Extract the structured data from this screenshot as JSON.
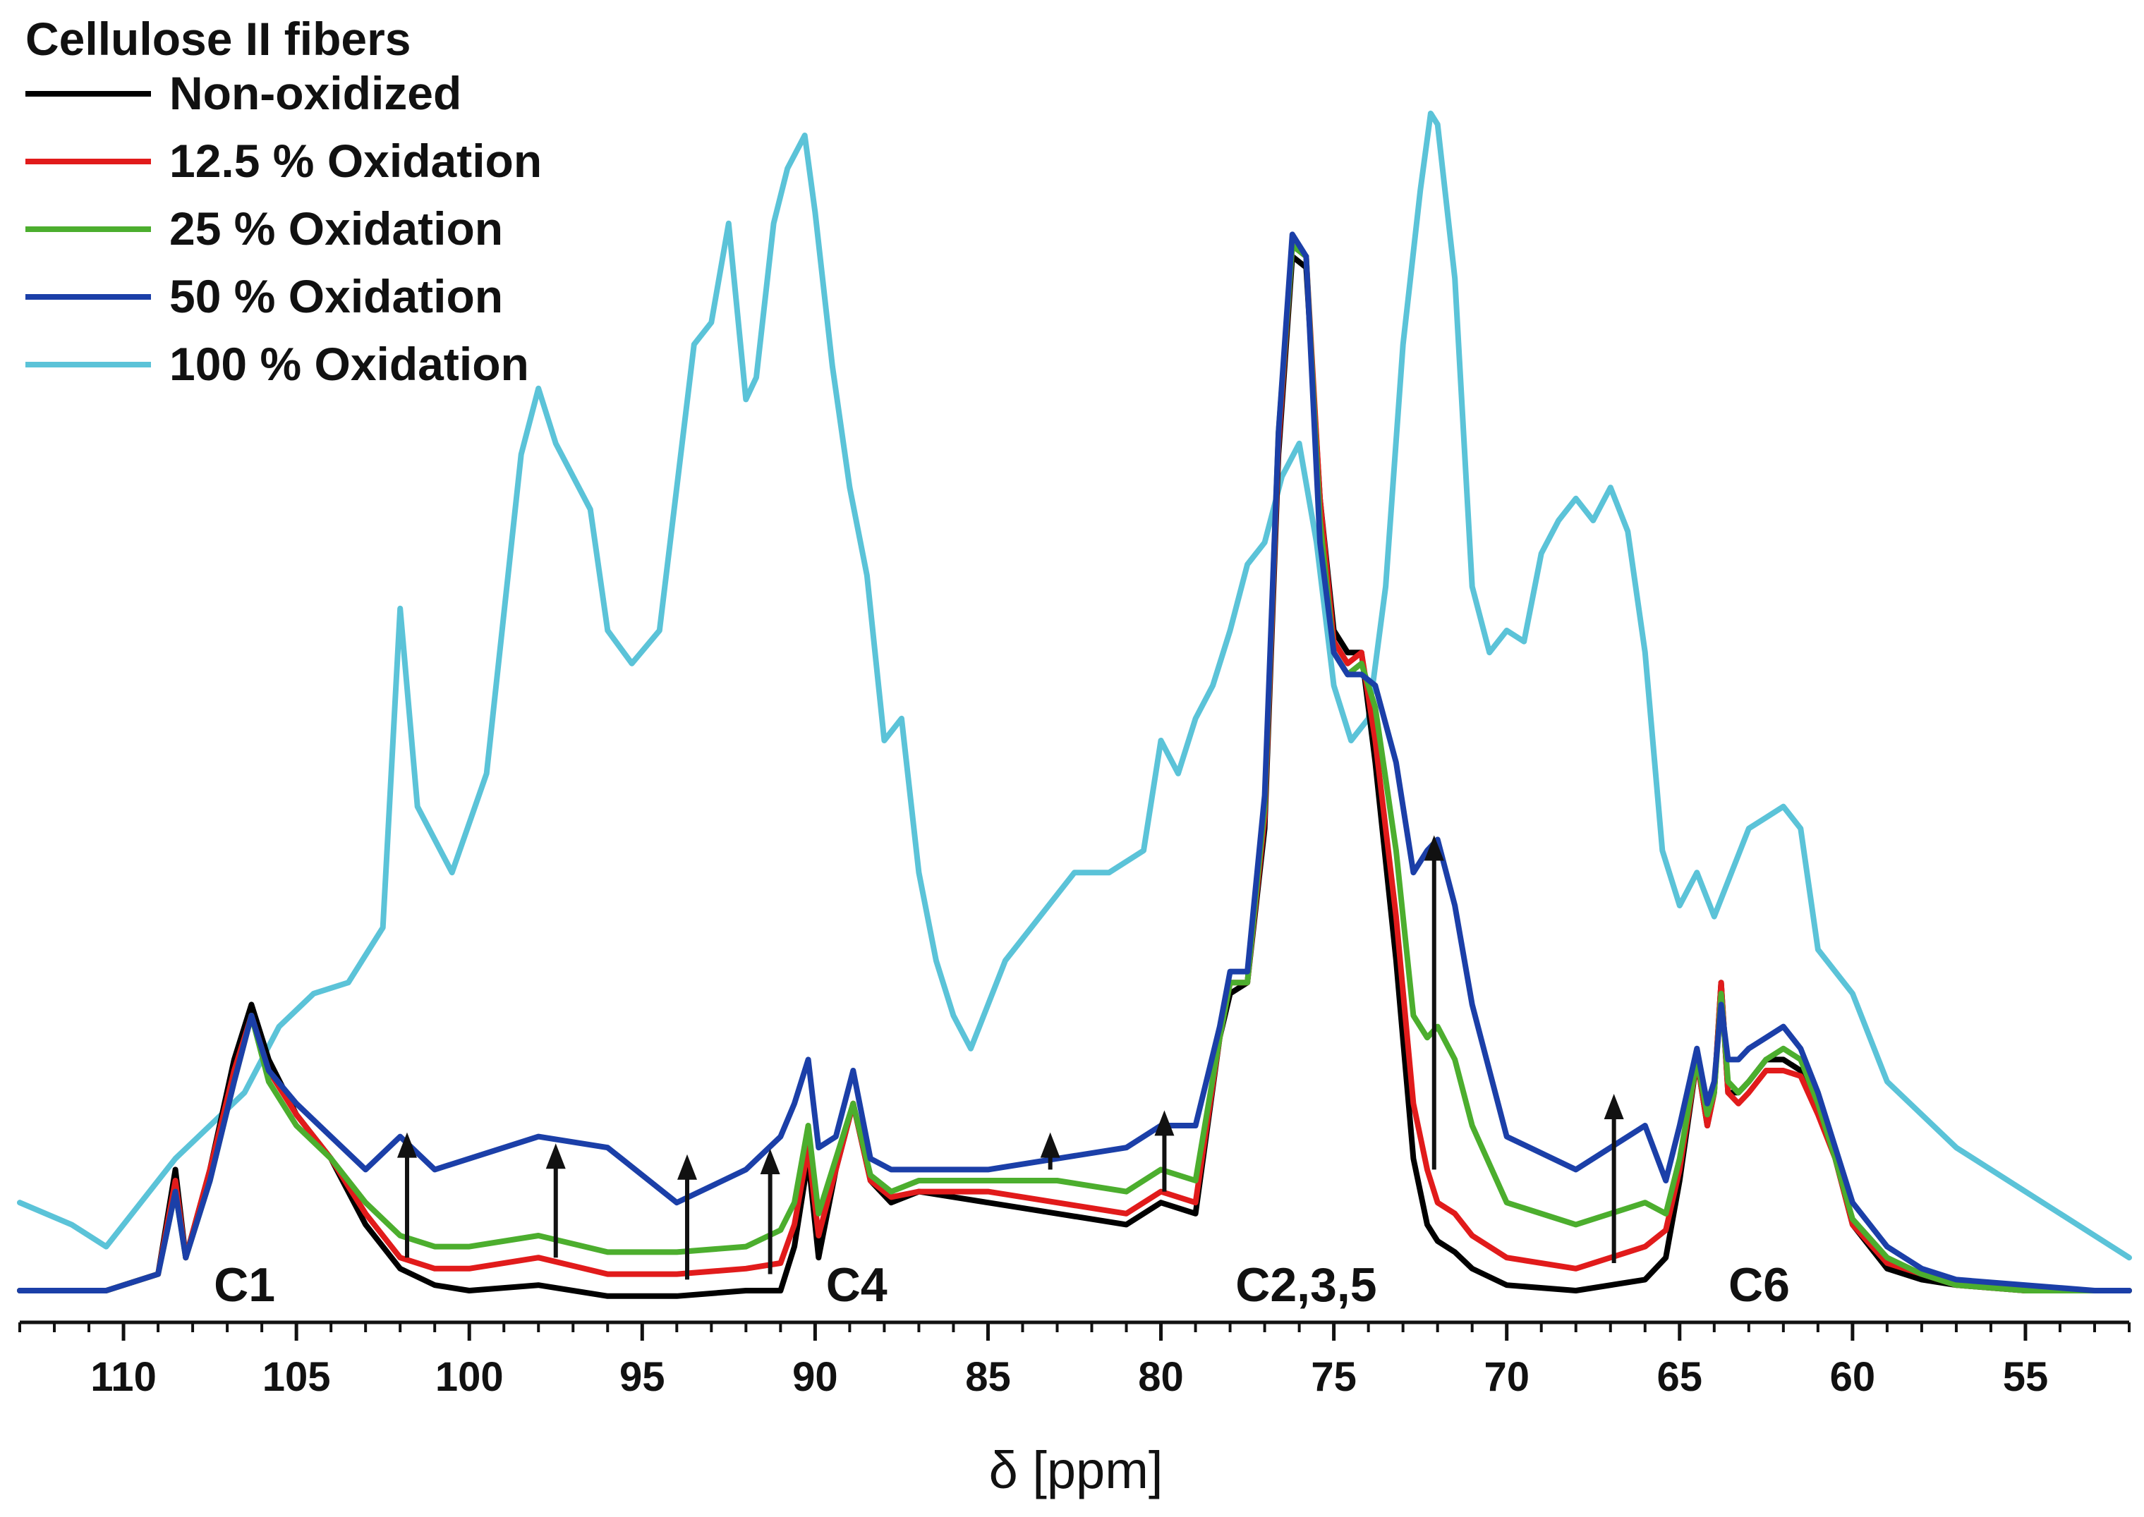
{
  "chart_data": {
    "type": "line",
    "title": "",
    "xlabel": "δ [ppm]",
    "ylabel": "",
    "xlim": [
      113,
      52
    ],
    "x_reversed": true,
    "ylim": [
      0,
      100
    ],
    "grid": false,
    "xticks": [
      110,
      105,
      100,
      95,
      90,
      85,
      80,
      75,
      70,
      65,
      60,
      55
    ],
    "legend": {
      "title": "Cellulose II fibers",
      "position": "top-left",
      "entries": [
        "Non-oxidized",
        "12.5 % Oxidation",
        "25 % Oxidation",
        "50 % Oxidation",
        "100 % Oxidation"
      ]
    },
    "peak_labels": [
      {
        "text": "C1",
        "ppm": 106.5
      },
      {
        "text": "C4",
        "ppm": 88.8
      },
      {
        "text": "C2,3,5",
        "ppm": 75.8
      },
      {
        "text": "C6",
        "ppm": 62.7
      }
    ],
    "arrows": [
      {
        "ppm": 101.8,
        "from": 3,
        "to": 14
      },
      {
        "ppm": 97.5,
        "from": 3,
        "to": 13
      },
      {
        "ppm": 93.7,
        "from": 1,
        "to": 12
      },
      {
        "ppm": 91.3,
        "from": 1.5,
        "to": 12.5
      },
      {
        "ppm": 83.2,
        "from": 11,
        "to": 14
      },
      {
        "ppm": 79.9,
        "from": 9,
        "to": 16
      },
      {
        "ppm": 72.1,
        "from": 11,
        "to": 41
      },
      {
        "ppm": 66.9,
        "from": 2.5,
        "to": 17.5
      }
    ],
    "series": [
      {
        "name": "Non-oxidized",
        "color": "#000000",
        "x": [
          113,
          110.5,
          109,
          108.5,
          108.2,
          107.5,
          106.8,
          106.3,
          105.8,
          105,
          104,
          103,
          102,
          101,
          100,
          98,
          96,
          94,
          92,
          91,
          90.6,
          90.2,
          89.9,
          89.4,
          88.9,
          88.4,
          87.8,
          87,
          85,
          83,
          81,
          80,
          79,
          78.3,
          78,
          77.5,
          77,
          76.6,
          76.2,
          75.8,
          75.4,
          75,
          74.6,
          74.2,
          73.8,
          73.2,
          72.7,
          72.3,
          72,
          71.5,
          71,
          70,
          68,
          66,
          65.4,
          65,
          64.5,
          64.2,
          64,
          63.8,
          63.6,
          63.3,
          63,
          62.5,
          62,
          61.5,
          61,
          60.5,
          60,
          59,
          58,
          57,
          55,
          53,
          52
        ],
        "y": [
          0,
          0,
          1.5,
          11,
          3,
          11,
          21,
          26,
          21,
          16,
          12,
          6,
          2,
          0.5,
          0,
          0.5,
          -0.5,
          -0.5,
          0,
          0,
          4,
          12,
          3,
          11,
          17,
          10,
          8,
          9,
          8,
          7,
          6,
          8,
          7,
          23,
          27,
          28,
          42,
          76,
          94,
          93,
          72,
          60,
          58,
          58,
          48,
          30,
          12,
          6,
          4.5,
          3.5,
          2,
          0.5,
          0,
          1,
          3,
          10,
          21,
          15,
          18,
          28,
          18,
          18,
          19,
          21,
          21,
          20,
          17,
          12,
          6,
          2,
          1,
          0.5,
          0,
          0,
          0
        ]
      },
      {
        "name": "12.5 % Oxidation",
        "color": "#e11b1b",
        "x": [
          113,
          110.5,
          109,
          108.5,
          108.2,
          107.5,
          106.8,
          106.3,
          105.8,
          105,
          104,
          103,
          102,
          101,
          100,
          98,
          96,
          94,
          92,
          91,
          90.6,
          90.2,
          89.9,
          89.4,
          88.9,
          88.4,
          87.8,
          87,
          85,
          83,
          81,
          80,
          79,
          78.3,
          78,
          77.5,
          77,
          76.6,
          76.2,
          75.8,
          75.4,
          75,
          74.6,
          74.2,
          73.8,
          73.2,
          72.7,
          72.3,
          72,
          71.5,
          71,
          70,
          68,
          66,
          65.4,
          65,
          64.5,
          64.2,
          64,
          63.8,
          63.6,
          63.3,
          63,
          62.5,
          62,
          61.5,
          61,
          60.5,
          60,
          59,
          58,
          57,
          55,
          53,
          52
        ],
        "y": [
          0,
          0,
          1.5,
          10,
          3,
          11,
          20,
          25,
          20,
          16,
          12,
          7,
          3,
          2,
          2,
          3,
          1.5,
          1.5,
          2,
          2.5,
          6,
          13,
          5,
          11,
          17,
          10,
          8.5,
          9,
          9,
          8,
          7,
          9,
          8,
          23,
          28,
          28,
          43,
          77,
          95,
          94,
          72,
          59,
          57,
          58,
          50,
          34,
          17,
          11,
          8,
          7,
          5,
          3,
          2,
          4,
          5.5,
          11,
          21,
          15,
          18,
          28,
          18,
          17,
          18,
          20,
          20,
          19.5,
          16,
          12,
          6,
          2.5,
          1.5,
          0.5,
          0,
          0,
          0
        ]
      },
      {
        "name": "25 % Oxidation",
        "color": "#4cae2e",
        "x": [
          113,
          110.5,
          109,
          108.5,
          108.2,
          107.5,
          106.8,
          106.3,
          105.8,
          105,
          104,
          103,
          102,
          101,
          100,
          98,
          96,
          94,
          92,
          91,
          90.6,
          90.2,
          89.9,
          89.4,
          88.9,
          88.4,
          87.8,
          87,
          85,
          83,
          81,
          80,
          79,
          78.3,
          78,
          77.5,
          77,
          76.6,
          76.2,
          75.8,
          75.4,
          75,
          74.6,
          74.2,
          73.8,
          73.2,
          72.7,
          72.3,
          72,
          71.5,
          71,
          70,
          68,
          66,
          65.4,
          65,
          64.5,
          64.2,
          64,
          63.8,
          63.6,
          63.3,
          63,
          62.5,
          62,
          61.5,
          61,
          60.5,
          60,
          59,
          58,
          57,
          55,
          53,
          52
        ],
        "y": [
          0,
          0,
          1.5,
          9,
          3,
          10,
          19,
          25,
          19,
          15,
          12,
          8,
          5,
          4,
          4,
          5,
          3.5,
          3.5,
          4,
          5.5,
          8,
          15,
          7,
          12,
          17,
          10.5,
          9,
          10,
          10,
          10,
          9,
          11,
          10,
          23,
          28,
          28,
          44,
          78,
          95,
          94,
          70,
          58,
          56,
          57,
          53,
          40,
          25,
          23,
          24,
          21,
          15,
          8,
          6,
          8,
          7,
          12,
          21,
          16,
          18,
          27,
          19,
          18,
          19,
          21,
          22,
          21,
          17,
          12,
          6.5,
          3,
          1.5,
          0.5,
          0,
          0,
          0
        ]
      },
      {
        "name": "50 % Oxidation",
        "color": "#1b3fa8",
        "x": [
          113,
          110.5,
          109,
          108.5,
          108.2,
          107.5,
          106.8,
          106.3,
          105.8,
          105,
          104,
          103,
          102,
          101,
          100,
          98,
          96,
          94,
          92,
          91,
          90.6,
          90.2,
          89.9,
          89.4,
          88.9,
          88.4,
          87.8,
          87,
          85,
          83,
          81,
          80,
          79,
          78.3,
          78,
          77.5,
          77,
          76.6,
          76.2,
          75.8,
          75.4,
          75,
          74.6,
          74.2,
          73.8,
          73.2,
          72.7,
          72.3,
          72,
          71.5,
          71,
          70,
          68,
          66,
          65.4,
          65,
          64.5,
          64.2,
          64,
          63.8,
          63.6,
          63.3,
          63,
          62.5,
          62,
          61.5,
          61,
          60.5,
          60,
          59,
          58,
          57,
          55,
          53,
          52
        ],
        "y": [
          0,
          0,
          1.5,
          9,
          3,
          10,
          19,
          25,
          20,
          17,
          14,
          11,
          14,
          11,
          12,
          14,
          13,
          8,
          11,
          14,
          17,
          21,
          13,
          14,
          20,
          12,
          11,
          11,
          11,
          12,
          13,
          15,
          15,
          24,
          29,
          29,
          45,
          78,
          96,
          94,
          68,
          58,
          56,
          56,
          55,
          48,
          38,
          40,
          41,
          35,
          26,
          14,
          11,
          15,
          10,
          15,
          22,
          17,
          19,
          26,
          21,
          21,
          22,
          23,
          24,
          22,
          18,
          13,
          8,
          4,
          2,
          1,
          0.5,
          0,
          0
        ]
      },
      {
        "name": "100 % Oxidation",
        "color": "#5bc3d8",
        "x": [
          113,
          111.5,
          110.5,
          109.5,
          108.5,
          107.5,
          106.5,
          105.5,
          104.5,
          103.5,
          102.5,
          102,
          101.5,
          100.5,
          99.5,
          98.5,
          98,
          97.5,
          96.5,
          96,
          95.3,
          94.5,
          94,
          93.5,
          93,
          92.5,
          92,
          91.7,
          91.2,
          90.8,
          90.3,
          90,
          89.5,
          89,
          88.5,
          88,
          87.5,
          87,
          86.5,
          86,
          85.5,
          85,
          84.5,
          83.5,
          82.5,
          81.5,
          80.5,
          80,
          79.5,
          79,
          78.5,
          78,
          77.5,
          77,
          76.5,
          76,
          75.5,
          75,
          74.5,
          74,
          73.5,
          73,
          72.5,
          72.2,
          72,
          71.5,
          71,
          70.5,
          70,
          69.5,
          69,
          68.5,
          68,
          67.5,
          67,
          66.5,
          66,
          65.5,
          65,
          64.5,
          64,
          63.5,
          63,
          62.5,
          62,
          61.5,
          61,
          60,
          59,
          58,
          57,
          56,
          55,
          54,
          53,
          52
        ],
        "y": [
          8,
          6,
          4,
          8,
          12,
          15,
          18,
          24,
          27,
          28,
          33,
          62,
          44,
          38,
          47,
          76,
          82,
          77,
          71,
          60,
          57,
          60,
          73,
          86,
          88,
          97,
          81,
          83,
          97,
          102,
          105,
          98,
          84,
          73,
          65,
          50,
          52,
          38,
          30,
          25,
          22,
          26,
          30,
          34,
          38,
          38,
          40,
          50,
          47,
          52,
          55,
          60,
          66,
          68,
          74,
          77,
          68,
          55,
          50,
          52,
          64,
          86,
          100,
          107,
          106,
          92,
          64,
          58,
          60,
          59,
          67,
          70,
          72,
          70,
          73,
          69,
          58,
          40,
          35,
          38,
          34,
          38,
          42,
          43,
          44,
          42,
          31,
          27,
          19,
          16,
          13,
          11,
          9,
          7,
          5,
          3
        ]
      }
    ]
  }
}
